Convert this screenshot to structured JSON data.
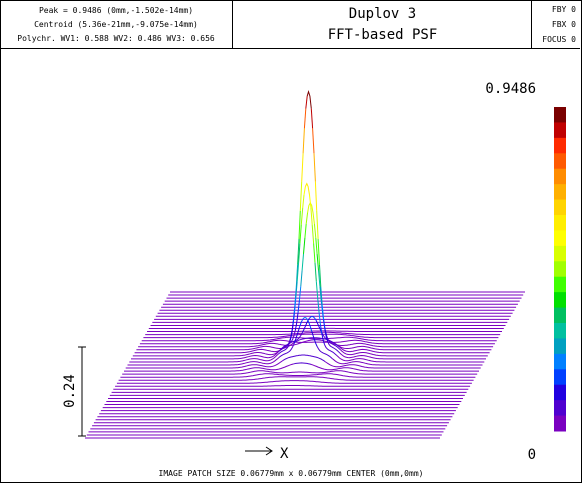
{
  "header": {
    "info_lines": [
      "Peak = 0.9486 (0mm,-1.502e-14mm)",
      "Centroid (5.36e-21mm,-9.075e-14mm)",
      "Polychr. WV1: 0.588 WV2: 0.486 WV3: 0.656"
    ],
    "title_lines": [
      "Duplov 3",
      "FFT-based PSF"
    ],
    "field_lines": [
      "FBY 0",
      "FBX 0",
      "FOCUS 0"
    ]
  },
  "footer": {
    "text": "IMAGE PATCH SIZE 0.06779mm x 0.06779mm    CENTER (0mm,0mm)"
  },
  "chart_data": {
    "type": "surface",
    "description_peak": 0.9486,
    "scale_bar_label": "0.24",
    "axis_label": "X",
    "colorbar": {
      "max_label": "0.9486",
      "min_label": "0",
      "colors": [
        "#7a0000",
        "#c00000",
        "#ff2a00",
        "#ff5a00",
        "#ff8c00",
        "#ffb000",
        "#ffd400",
        "#ffee00",
        "#ffff00",
        "#d8ff00",
        "#a0ff00",
        "#40ff00",
        "#00e000",
        "#00c060",
        "#00c0a0",
        "#00a0c0",
        "#0080ff",
        "#0040ff",
        "#2000e0",
        "#5000d0",
        "#7a00c0"
      ]
    },
    "peak_value": 0.9486,
    "sidelobe_value": 0.035
  }
}
